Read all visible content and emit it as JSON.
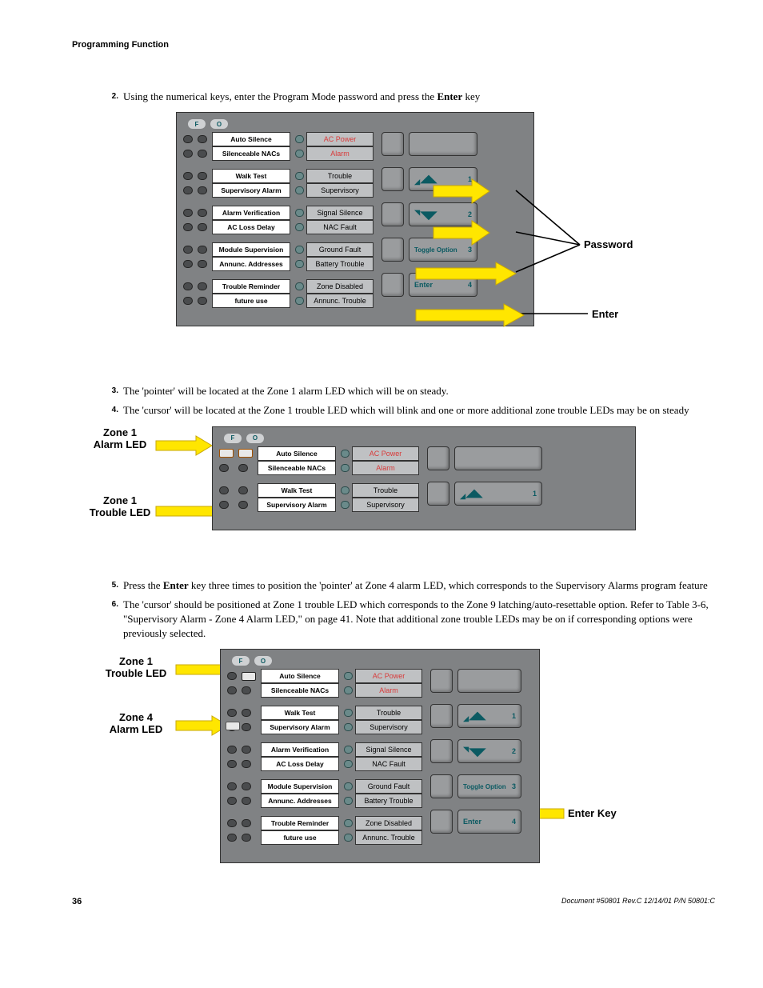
{
  "header": "Programming Function",
  "steps": {
    "s2": {
      "n": "2.",
      "t": "Using the numerical keys, enter the Program Mode password and press the ",
      "bold": "Enter",
      "after": " key"
    },
    "s3": {
      "n": "3.",
      "t": "The 'pointer' will be located at the Zone 1 alarm LED which will be on steady."
    },
    "s4": {
      "n": "4.",
      "t": "The 'cursor' will be located at the Zone 1 trouble LED which will blink and one or more additional zone trouble LEDs may be on steady"
    },
    "s5": {
      "n": "5.",
      "pre": "Press the ",
      "bold": "Enter",
      "post": " key three times to position the 'pointer' at Zone 4 alarm LED, which corresponds to the Supervisory Alarms program feature"
    },
    "s6": {
      "n": "6.",
      "t": "The 'cursor' should be positioned at Zone 1 trouble LED which corresponds to the Zone 9 latching/auto-resettable option.  Refer to Table 3-6, \"Supervisory Alarm - Zone 4 Alarm LED,\" on page 41.  Note that additional zone trouble LEDs may be on if corresponding options were previously selected."
    }
  },
  "labels_col1": [
    "Auto Silence",
    "Silenceable NACs",
    "Walk Test",
    "Supervisory Alarm",
    "Alarm Verification",
    "AC Loss Delay",
    "Module Supervision",
    "Annunc. Addresses",
    "Trouble Reminder",
    "future use"
  ],
  "labels_col2_status": [
    {
      "t": "AC Power",
      "r": true
    },
    {
      "t": "Alarm",
      "r": true
    },
    {
      "t": "Trouble",
      "r": false
    },
    {
      "t": "Supervisory",
      "r": false
    },
    {
      "t": "Signal Silence",
      "r": false
    },
    {
      "t": "NAC Fault",
      "r": false
    },
    {
      "t": "Ground Fault",
      "r": false
    },
    {
      "t": "Battery Trouble",
      "r": false
    },
    {
      "t": "Zone Disabled",
      "r": false
    },
    {
      "t": "Annunc. Trouble",
      "r": false
    }
  ],
  "key_nums": [
    "1",
    "2",
    "3",
    "4"
  ],
  "key_toggle_label": "Toggle Option",
  "key_enter_label": "Enter",
  "annotations": {
    "password": "Password",
    "enter": "Enter",
    "enter_key": "Enter Key",
    "z1alarm": "Zone 1\nAlarm LED",
    "z1trouble": "Zone 1\nTrouble LED",
    "z4alarm": "Zone 4\nAlarm LED"
  },
  "footer": {
    "pg": "36",
    "doc": "Document #50801   Rev.C   12/14/01   P/N 50801:C"
  }
}
